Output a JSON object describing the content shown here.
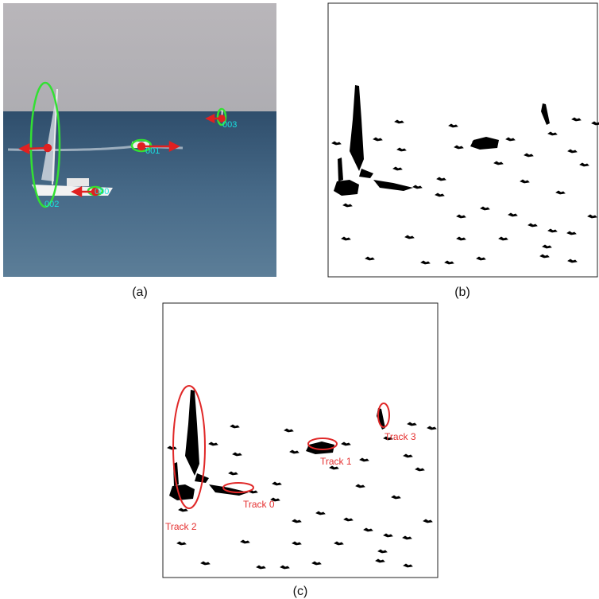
{
  "panels": [
    {
      "label": "(a)",
      "track_ids": [
        "000",
        "001",
        "002",
        "003"
      ]
    },
    {
      "label": "(b)"
    },
    {
      "label": "(c)",
      "tracks": [
        "Track 0",
        "Track 1",
        "Track 2",
        "Track 3"
      ]
    }
  ]
}
